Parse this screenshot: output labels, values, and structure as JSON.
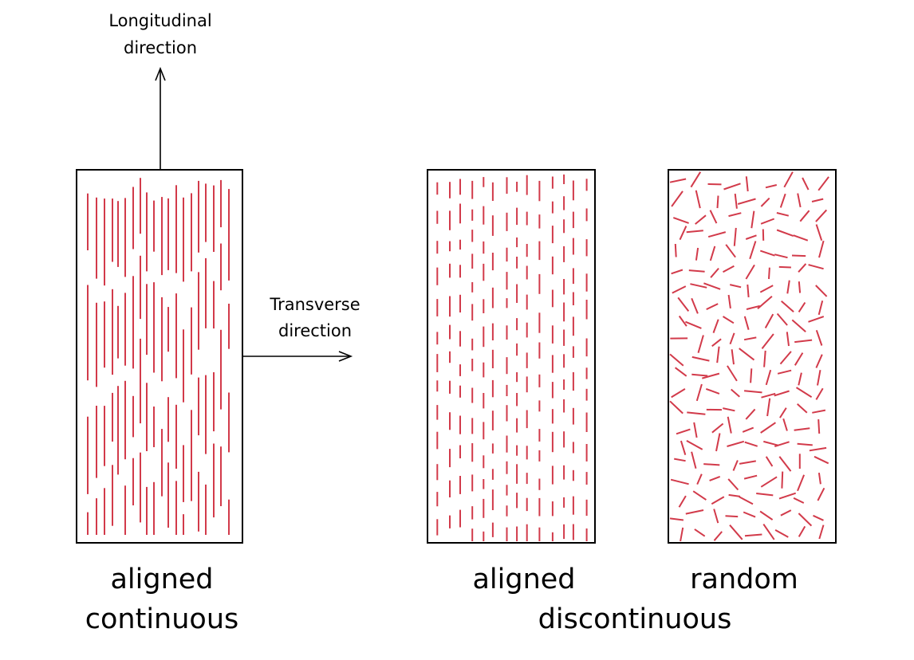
{
  "labels": {
    "longitudinal_line1": "Longitudinal",
    "longitudinal_line2": "direction",
    "transverse_line1": "Transverse",
    "transverse_line2": "direction",
    "panel1_line1": "aligned",
    "panel1_line2": "continuous",
    "panel2_word": "aligned",
    "panel3_word": "random",
    "discontinuous": "discontinuous"
  },
  "colors": {
    "fiber": "#d23a4a",
    "outline": "#000000",
    "background": "#ffffff"
  },
  "panels": [
    {
      "id": "aligned-continuous",
      "fiber_arrangement": "long, parallel to longitudinal direction"
    },
    {
      "id": "aligned-discontinuous",
      "fiber_arrangement": "short, parallel to longitudinal direction"
    },
    {
      "id": "random-discontinuous",
      "fiber_arrangement": "short, random orientation"
    }
  ]
}
